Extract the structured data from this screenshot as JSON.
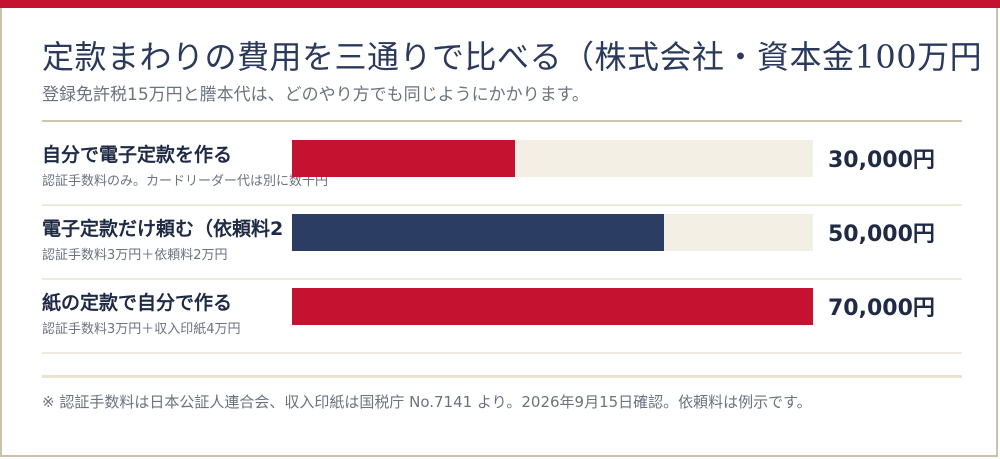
{
  "header": {
    "title": "定款まわりの費用を三通りで比べる（株式会社・資本金100万円",
    "subtitle": "登録免許税15万円と謄本代は、どのやり方でも同じようにかかります。"
  },
  "colors": {
    "accent_red": "#c41230",
    "navy": "#2b3d63",
    "track": "#f3efe4"
  },
  "chart_data": {
    "type": "bar",
    "orientation": "horizontal",
    "categories": [
      "自分で電子定款を作る",
      "電子定款だけ頼む（依頼料2",
      "紙の定款で自分で作る"
    ],
    "notes": [
      "認証手数料のみ。カードリーダー代は別に数千円",
      "認証手数料3万円＋依頼料2万円",
      "認証手数料3万円＋収入印紙4万円"
    ],
    "values": [
      30000,
      50000,
      70000
    ],
    "value_labels": [
      "30,000円",
      "50,000円",
      "70,000円"
    ],
    "bar_colors": [
      "#c41230",
      "#2b3d63",
      "#c41230"
    ],
    "xlim": [
      0,
      70000
    ],
    "unit": "円"
  },
  "footnote": "※ 認証手数料は日本公証人連合会、収入印紙は国税庁 No.7141 より。2026年9月15日確認。依頼料は例示です。"
}
